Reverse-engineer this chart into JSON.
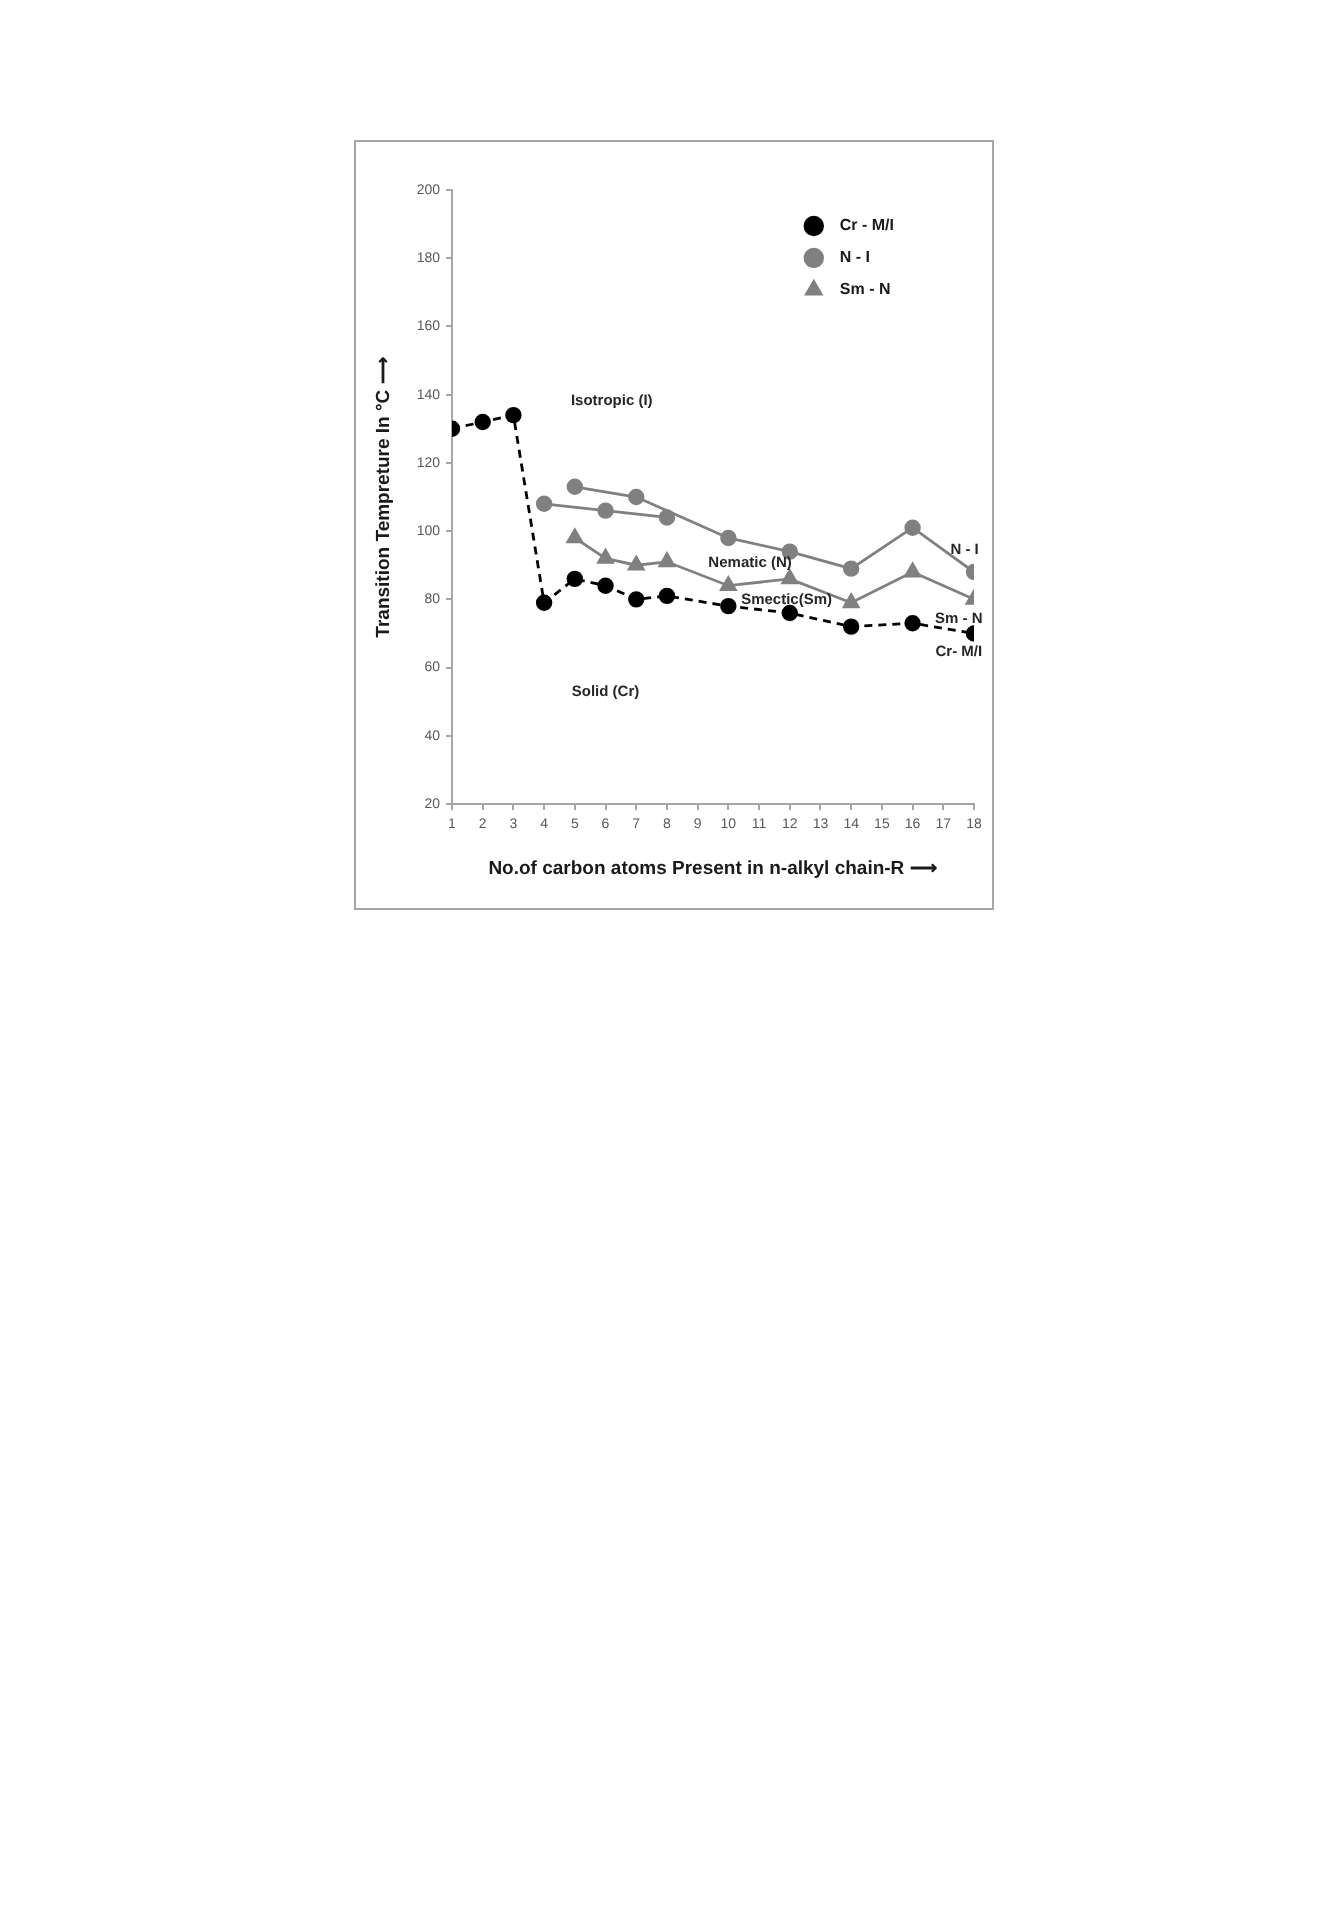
{
  "chart_data": {
    "type": "line",
    "xlabel": "No.of carbon atoms Present in n-alkyl chain-R ⟶",
    "ylabel": "Transition Tempreture In °C ⟶",
    "xlim": [
      1,
      18
    ],
    "xticks": [
      1,
      2,
      3,
      4,
      5,
      6,
      7,
      8,
      9,
      10,
      11,
      12,
      13,
      14,
      15,
      16,
      17,
      18
    ],
    "ylim": [
      20,
      200
    ],
    "yticks": [
      20,
      40,
      60,
      80,
      100,
      120,
      140,
      160,
      180,
      200
    ],
    "legend": "top right",
    "series": [
      {
        "name": "Cr - M/I",
        "color": "#000000",
        "marker": "circle",
        "line_style": "dashed",
        "x": [
          1,
          2,
          3,
          4,
          5,
          6,
          7,
          8,
          10,
          12,
          14,
          16,
          18
        ],
        "values": [
          130,
          132,
          134,
          79,
          86,
          84,
          80,
          81,
          78,
          76,
          72,
          73,
          70
        ]
      },
      {
        "name": "N - I",
        "color": "#808080",
        "marker": "circle",
        "line_style": "solid",
        "x": [
          5,
          7,
          10,
          12,
          14,
          16,
          18
        ],
        "values": [
          113,
          110,
          98,
          94,
          89,
          101,
          88
        ]
      },
      {
        "color": "#808080",
        "marker": "circle",
        "line_style": "solid",
        "x": [
          4,
          6,
          8
        ],
        "values": [
          108,
          106,
          104
        ]
      },
      {
        "name": "Sm - N",
        "color": "#808080",
        "marker": "triangle",
        "line_style": "solid",
        "x": [
          5,
          6,
          7,
          8,
          10,
          12,
          14,
          16,
          18
        ],
        "values": [
          98,
          92,
          90,
          91,
          84,
          86,
          79,
          88,
          80
        ]
      }
    ],
    "annotations": [
      "Isotropic (I)",
      "Nematic (N)",
      "Smectic(Sm)",
      "Solid (Cr)",
      "N - I",
      "Sm - N",
      "Cr- M/I"
    ]
  }
}
